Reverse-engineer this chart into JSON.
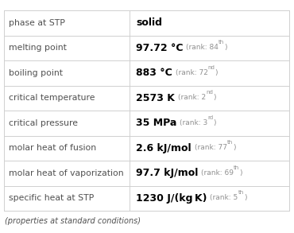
{
  "rows": [
    {
      "label": "phase at STP",
      "value": "solid",
      "rank": "",
      "sup": ""
    },
    {
      "label": "melting point",
      "value": "97.72 °C",
      "rank": "(rank: 84",
      "sup": "th"
    },
    {
      "label": "boiling point",
      "value": "883 °C",
      "rank": "(rank: 72",
      "sup": "nd"
    },
    {
      "label": "critical temperature",
      "value": "2573 K",
      "rank": "(rank: 2",
      "sup": "nd"
    },
    {
      "label": "critical pressure",
      "value": "35 MPa",
      "rank": "(rank: 3",
      "sup": "rd"
    },
    {
      "label": "molar heat of fusion",
      "value": "2.6 kJ/mol",
      "rank": "(rank: 77",
      "sup": "th"
    },
    {
      "label": "molar heat of vaporization",
      "value": "97.7 kJ/mol",
      "rank": "(rank: 69",
      "sup": "th"
    },
    {
      "label": "specific heat at STP",
      "value": "1230 J/(kg K)",
      "rank": "(rank: 5",
      "sup": "th"
    }
  ],
  "footer": "(properties at standard conditions)",
  "bg_color": "#ffffff",
  "label_color": "#505050",
  "value_color": "#000000",
  "rank_color": "#909090",
  "grid_color": "#d0d0d0",
  "col_split": 0.44,
  "fig_width": 3.7,
  "fig_height": 2.93,
  "label_fontsize": 7.8,
  "value_fontsize": 9.0,
  "rank_fontsize": 6.5,
  "sup_fontsize": 5.0,
  "footer_fontsize": 7.0
}
